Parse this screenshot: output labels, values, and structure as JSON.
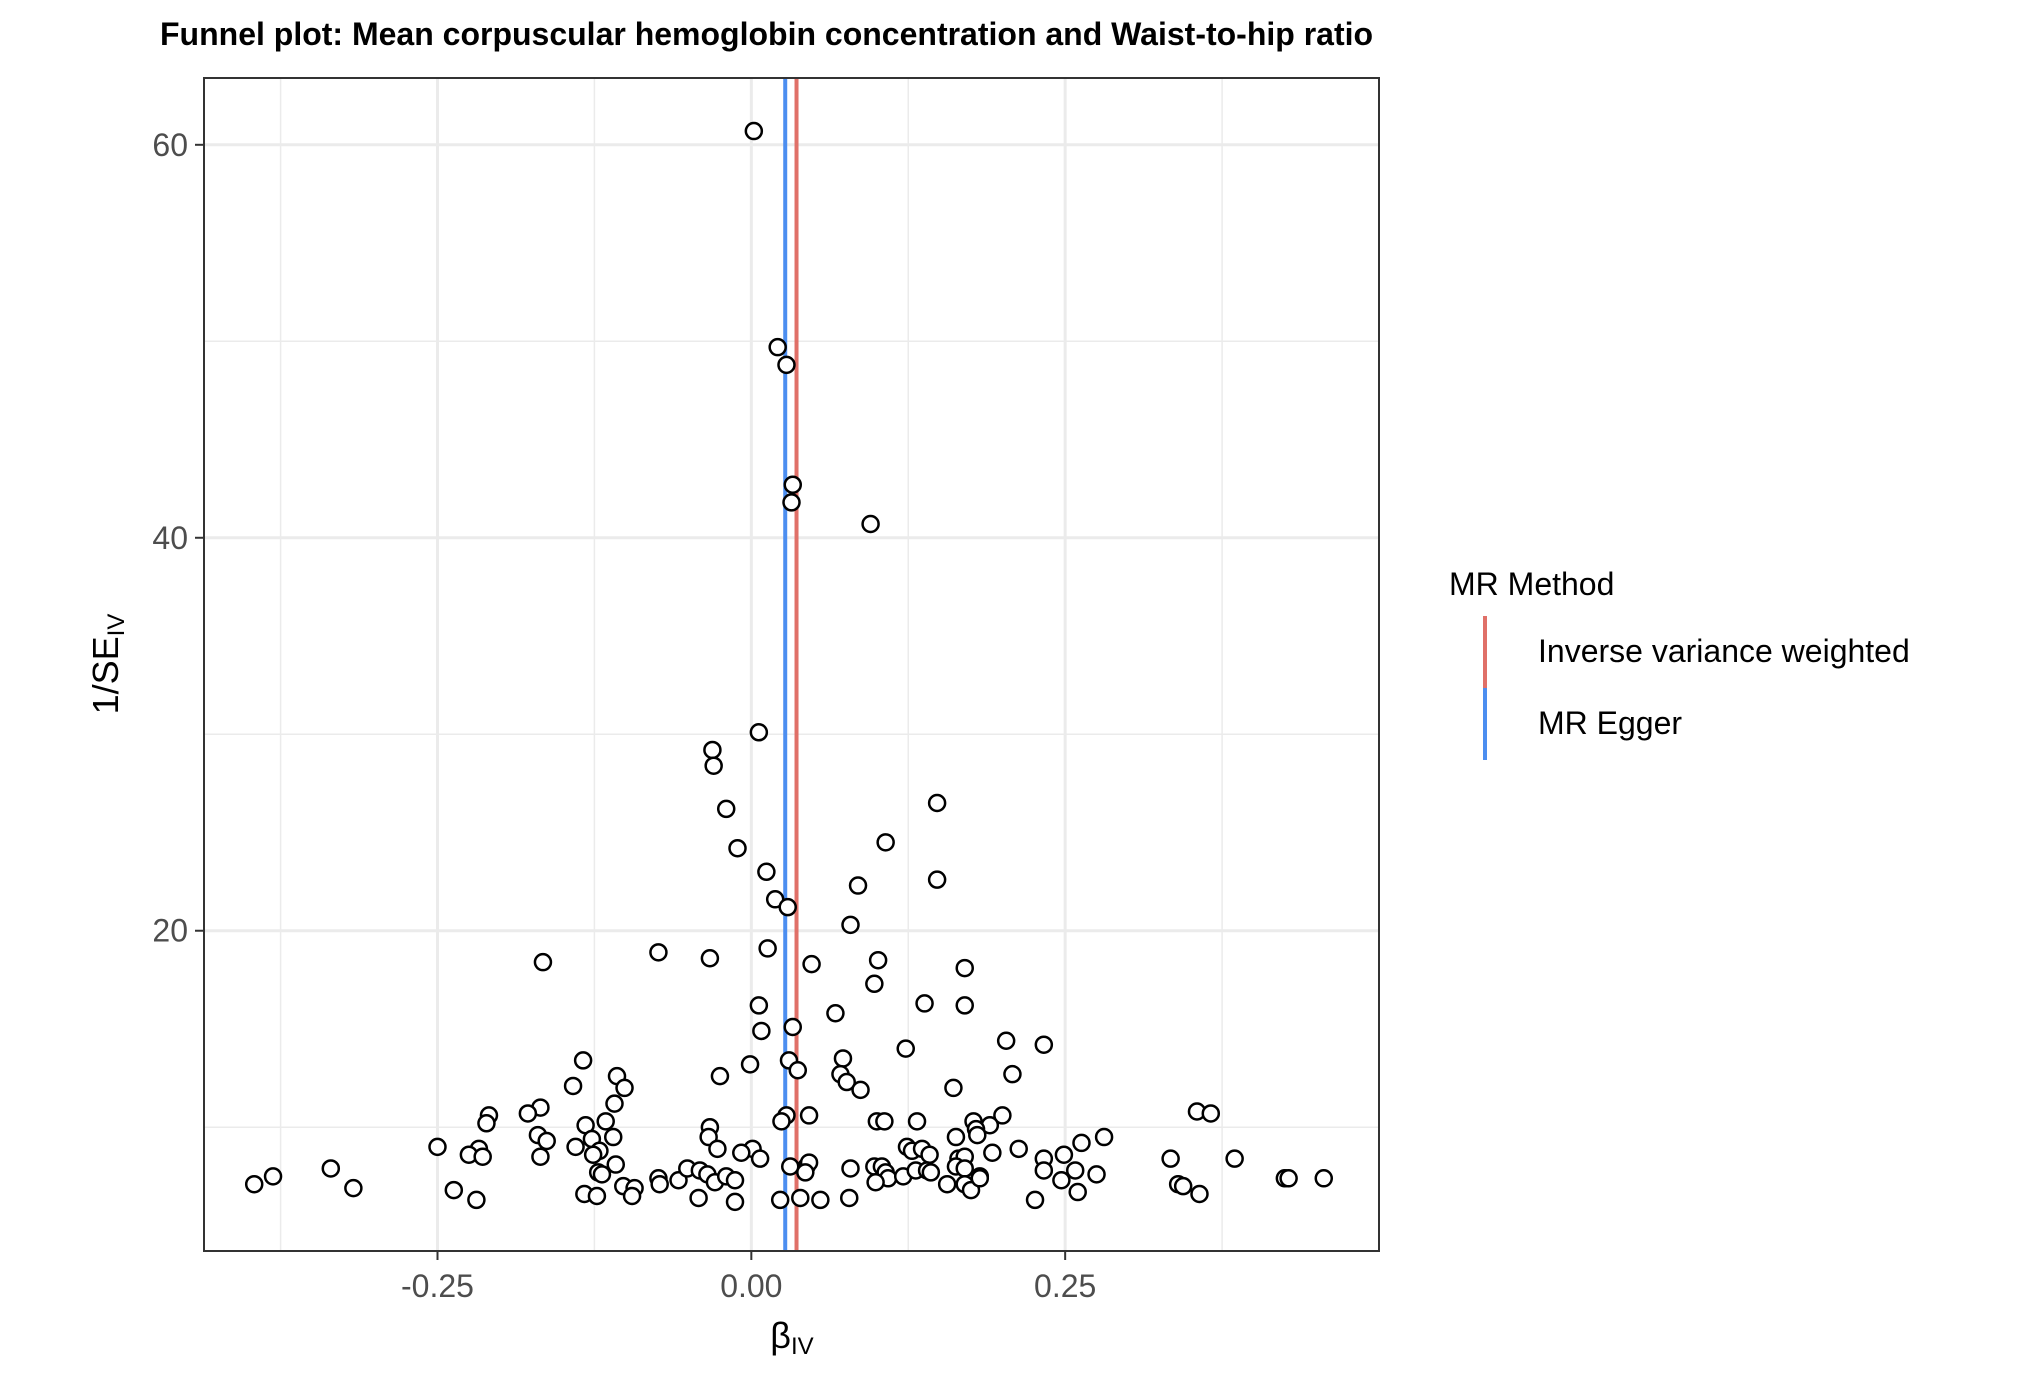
{
  "chart_data": {
    "type": "scatter",
    "title": "Funnel plot: Mean corpuscular hemoglobin concentration and Waist-to-hip ratio",
    "xlabel": "β",
    "xlabel_sub": "IV",
    "ylabel": "1/SE",
    "ylabel_sub": "IV",
    "xlim": [
      -0.436,
      0.5
    ],
    "ylim": [
      3.7,
      63.4
    ],
    "x_ticks": [
      {
        "value": -0.25,
        "label": "-0.25"
      },
      {
        "value": 0.0,
        "label": "0.00"
      },
      {
        "value": 0.25,
        "label": "0.25"
      }
    ],
    "y_ticks": [
      {
        "value": 20,
        "label": "20"
      },
      {
        "value": 40,
        "label": "40"
      },
      {
        "value": 60,
        "label": "60"
      }
    ],
    "grid": true,
    "legend": {
      "title": "MR Method",
      "position": "right",
      "items": [
        {
          "label": "Inverse variance weighted",
          "color": "#E07068"
        },
        {
          "label": "MR Egger",
          "color": "#4C8EF0"
        }
      ]
    },
    "lines": [
      {
        "method": "Inverse variance weighted",
        "x": 0.036,
        "color": "#E07068"
      },
      {
        "method": "MR Egger",
        "x": 0.027,
        "color": "#4C8EF0"
      }
    ],
    "points": [
      [
        0.002,
        60.7
      ],
      [
        0.021,
        49.7
      ],
      [
        0.028,
        48.8
      ],
      [
        0.033,
        42.7
      ],
      [
        0.032,
        41.8
      ],
      [
        0.095,
        40.7
      ],
      [
        0.006,
        30.1
      ],
      [
        -0.031,
        29.2
      ],
      [
        -0.03,
        28.4
      ],
      [
        -0.02,
        26.2
      ],
      [
        -0.011,
        24.2
      ],
      [
        0.148,
        26.5
      ],
      [
        0.107,
        24.5
      ],
      [
        0.012,
        23.0
      ],
      [
        0.085,
        22.3
      ],
      [
        0.148,
        22.6
      ],
      [
        0.019,
        21.6
      ],
      [
        0.029,
        21.2
      ],
      [
        0.079,
        20.3
      ],
      [
        0.013,
        19.1
      ],
      [
        0.048,
        18.3
      ],
      [
        0.101,
        18.5
      ],
      [
        -0.166,
        18.4
      ],
      [
        -0.074,
        18.9
      ],
      [
        -0.033,
        18.6
      ],
      [
        0.17,
        18.1
      ],
      [
        0.098,
        17.3
      ],
      [
        0.067,
        15.8
      ],
      [
        0.006,
        16.2
      ],
      [
        0.138,
        16.3
      ],
      [
        0.17,
        16.2
      ],
      [
        0.008,
        14.9
      ],
      [
        0.033,
        15.1
      ],
      [
        0.203,
        14.4
      ],
      [
        0.233,
        14.2
      ],
      [
        0.123,
        14.0
      ],
      [
        0.03,
        13.4
      ],
      [
        0.073,
        13.5
      ],
      [
        -0.001,
        13.2
      ],
      [
        -0.134,
        13.4
      ],
      [
        -0.107,
        12.6
      ],
      [
        -0.025,
        12.6
      ],
      [
        0.037,
        12.9
      ],
      [
        0.071,
        12.7
      ],
      [
        0.076,
        12.3
      ],
      [
        0.208,
        12.7
      ],
      [
        0.087,
        11.9
      ],
      [
        0.161,
        12.0
      ],
      [
        -0.142,
        12.1
      ],
      [
        -0.101,
        12.0
      ],
      [
        -0.109,
        11.2
      ],
      [
        -0.168,
        11.0
      ],
      [
        0.355,
        10.8
      ],
      [
        0.366,
        10.7
      ],
      [
        -0.178,
        10.7
      ],
      [
        -0.209,
        10.6
      ],
      [
        -0.211,
        10.2
      ],
      [
        0.028,
        10.6
      ],
      [
        0.046,
        10.6
      ],
      [
        0.024,
        10.3
      ],
      [
        0.1,
        10.3
      ],
      [
        0.106,
        10.3
      ],
      [
        0.132,
        10.3
      ],
      [
        0.2,
        10.6
      ],
      [
        0.177,
        10.3
      ],
      [
        0.19,
        10.1
      ],
      [
        0.179,
        9.9
      ],
      [
        0.18,
        9.6
      ],
      [
        -0.116,
        10.3
      ],
      [
        -0.132,
        10.1
      ],
      [
        -0.17,
        9.6
      ],
      [
        -0.163,
        9.3
      ],
      [
        -0.033,
        10.0
      ],
      [
        -0.034,
        9.5
      ],
      [
        -0.11,
        9.5
      ],
      [
        -0.127,
        9.4
      ],
      [
        0.163,
        9.5
      ],
      [
        0.263,
        9.2
      ],
      [
        0.281,
        9.5
      ],
      [
        -0.25,
        9.0
      ],
      [
        -0.14,
        9.0
      ],
      [
        -0.217,
        8.9
      ],
      [
        -0.121,
        8.8
      ],
      [
        -0.126,
        8.6
      ],
      [
        -0.225,
        8.6
      ],
      [
        -0.214,
        8.5
      ],
      [
        -0.168,
        8.5
      ],
      [
        -0.027,
        8.9
      ],
      [
        0.001,
        8.9
      ],
      [
        -0.008,
        8.7
      ],
      [
        0.007,
        8.4
      ],
      [
        0.124,
        9.0
      ],
      [
        0.128,
        8.8
      ],
      [
        0.136,
        8.9
      ],
      [
        0.142,
        8.6
      ],
      [
        0.165,
        8.4
      ],
      [
        0.17,
        8.5
      ],
      [
        0.192,
        8.7
      ],
      [
        0.213,
        8.9
      ],
      [
        0.233,
        8.4
      ],
      [
        0.249,
        8.6
      ],
      [
        0.334,
        8.4
      ],
      [
        0.385,
        8.4
      ],
      [
        -0.335,
        7.9
      ],
      [
        -0.381,
        7.5
      ],
      [
        -0.396,
        7.1
      ],
      [
        -0.317,
        6.9
      ],
      [
        -0.237,
        6.8
      ],
      [
        -0.219,
        6.3
      ],
      [
        -0.122,
        7.7
      ],
      [
        -0.108,
        8.1
      ],
      [
        -0.119,
        7.6
      ],
      [
        -0.102,
        7.0
      ],
      [
        -0.093,
        6.9
      ],
      [
        -0.095,
        6.5
      ],
      [
        -0.074,
        7.4
      ],
      [
        -0.073,
        7.1
      ],
      [
        -0.058,
        7.3
      ],
      [
        -0.051,
        7.9
      ],
      [
        -0.041,
        7.8
      ],
      [
        -0.035,
        7.6
      ],
      [
        -0.029,
        7.2
      ],
      [
        -0.02,
        7.5
      ],
      [
        -0.013,
        7.3
      ],
      [
        -0.042,
        6.4
      ],
      [
        -0.013,
        6.2
      ],
      [
        -0.133,
        6.6
      ],
      [
        -0.123,
        6.5
      ],
      [
        0.031,
        8.0
      ],
      [
        0.044,
        8.0
      ],
      [
        0.046,
        8.2
      ],
      [
        0.043,
        7.7
      ],
      [
        0.079,
        7.9
      ],
      [
        0.098,
        8.0
      ],
      [
        0.104,
        8.0
      ],
      [
        0.107,
        7.7
      ],
      [
        0.109,
        7.4
      ],
      [
        0.121,
        7.5
      ],
      [
        0.131,
        7.8
      ],
      [
        0.14,
        7.8
      ],
      [
        0.143,
        7.7
      ],
      [
        0.156,
        7.1
      ],
      [
        0.163,
        8.0
      ],
      [
        0.17,
        7.9
      ],
      [
        0.17,
        7.1
      ],
      [
        0.175,
        6.8
      ],
      [
        0.182,
        7.5
      ],
      [
        0.182,
        7.4
      ],
      [
        0.233,
        7.8
      ],
      [
        0.247,
        7.3
      ],
      [
        0.258,
        7.8
      ],
      [
        0.275,
        7.6
      ],
      [
        0.34,
        7.1
      ],
      [
        0.344,
        7.0
      ],
      [
        0.357,
        6.6
      ],
      [
        0.425,
        7.4
      ],
      [
        0.428,
        7.4
      ],
      [
        0.456,
        7.4
      ],
      [
        0.099,
        7.2
      ],
      [
        0.023,
        6.3
      ],
      [
        0.039,
        6.4
      ],
      [
        0.055,
        6.3
      ],
      [
        0.078,
        6.4
      ],
      [
        0.226,
        6.3
      ],
      [
        0.26,
        6.7
      ]
    ]
  }
}
